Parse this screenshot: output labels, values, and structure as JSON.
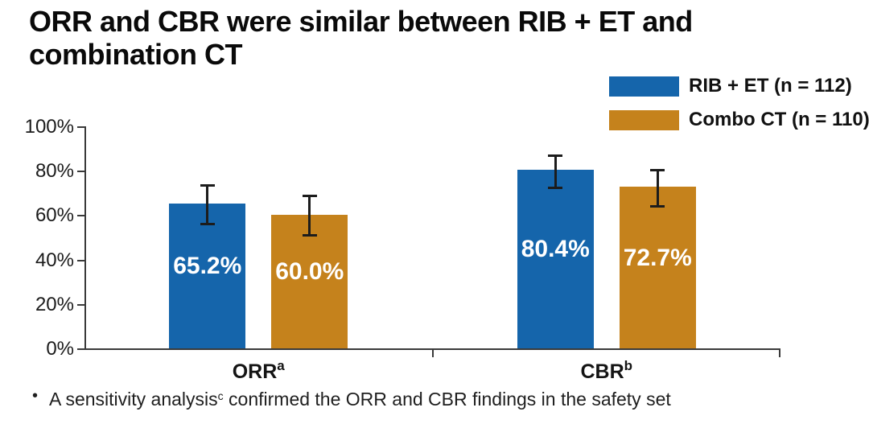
{
  "title": "ORR and CBR were similar between RIB + ET and\ncombination CT",
  "footnote": {
    "bullet": "•",
    "text": "A sensitivity analysis",
    "superscript": "c",
    "text_after": " confirmed the ORR and CBR findings in the safety set"
  },
  "chart_data": {
    "type": "bar",
    "title": "",
    "xlabel": "",
    "ylabel": "",
    "categories": [
      "ORR",
      "CBR"
    ],
    "category_superscripts": [
      "a",
      "b"
    ],
    "series": [
      {
        "name": "RIB + ET (n = 112)",
        "color": "#1565ab",
        "values": [
          65.2,
          80.4
        ],
        "labels": [
          "65.2%",
          "80.4%"
        ],
        "ci_low": [
          55.6,
          71.8
        ],
        "ci_high": [
          74.0,
          87.3
        ]
      },
      {
        "name": "Combo CT (n = 110)",
        "color": "#c5821c",
        "values": [
          60.0,
          72.7
        ],
        "labels": [
          "60.0%",
          "72.7%"
        ],
        "ci_low": [
          50.2,
          63.4
        ],
        "ci_high": [
          69.2,
          80.8
        ]
      }
    ],
    "ylim": [
      0,
      100
    ],
    "y_ticks": [
      "0%",
      "20%",
      "40%",
      "60%",
      "80%",
      "100%"
    ],
    "grid": false,
    "error_bars": true,
    "error_bar_color": "#1c1c1c",
    "legend_position": "top-right"
  }
}
